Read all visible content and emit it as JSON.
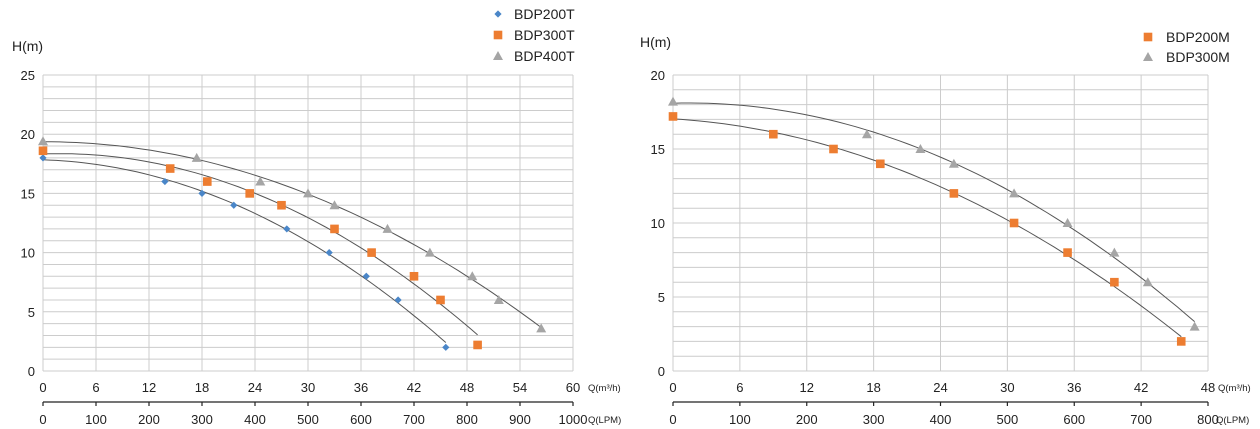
{
  "colors": {
    "grid": "#cccccc",
    "curve": "#555555",
    "BDP200T": "#4a86c8",
    "BDP300T": "#ed7d31",
    "BDP400T": "#a5a5a5",
    "BDP200M": "#ed7d31",
    "BDP300M": "#a5a5a5"
  },
  "chart_data": [
    {
      "type": "scatter",
      "ylabel": "H(m)",
      "xlabel": "Q(m³/h)",
      "xlabel2": "Q(LPM)",
      "xlim": [
        0,
        60
      ],
      "ylim": [
        0,
        25
      ],
      "x_ticks": [
        "0",
        "6",
        "12",
        "18",
        "24",
        "30",
        "36",
        "42",
        "48",
        "54",
        "60"
      ],
      "x2_ticks": [
        "0",
        "100",
        "200",
        "300",
        "400",
        "500",
        "600",
        "700",
        "800",
        "900",
        "1000"
      ],
      "y_ticks": [
        "0",
        "5",
        "10",
        "15",
        "20",
        "25"
      ],
      "grid": true,
      "legend": "top-center",
      "series": [
        {
          "name": "BDP200T",
          "marker": "diamond",
          "points": [
            [
              0,
              18
            ],
            [
              13.8,
              16
            ],
            [
              18,
              15
            ],
            [
              21.6,
              14
            ],
            [
              27.6,
              12
            ],
            [
              32.4,
              10
            ],
            [
              36.6,
              8
            ],
            [
              40.2,
              6
            ],
            [
              45.6,
              2
            ]
          ]
        },
        {
          "name": "BDP300T",
          "marker": "square",
          "points": [
            [
              0,
              18.6
            ],
            [
              14.4,
              17.1
            ],
            [
              18.6,
              16
            ],
            [
              23.4,
              15
            ],
            [
              27,
              14
            ],
            [
              33,
              12
            ],
            [
              37.2,
              10
            ],
            [
              42,
              8
            ],
            [
              45,
              6
            ],
            [
              49.2,
              2.2
            ]
          ]
        },
        {
          "name": "BDP400T",
          "marker": "triangle",
          "points": [
            [
              0,
              19.4
            ],
            [
              17.4,
              18
            ],
            [
              24.6,
              16
            ],
            [
              30,
              15
            ],
            [
              33,
              14
            ],
            [
              39,
              12
            ],
            [
              43.8,
              10
            ],
            [
              48.6,
              8
            ],
            [
              51.6,
              6
            ],
            [
              56.4,
              3.6
            ]
          ]
        }
      ]
    },
    {
      "type": "scatter",
      "ylabel": "H(m)",
      "xlabel": "Q(m³/h)",
      "xlabel2": "Q(LPM)",
      "xlim": [
        0,
        48
      ],
      "ylim": [
        0,
        20
      ],
      "x_ticks": [
        "0",
        "6",
        "12",
        "18",
        "24",
        "30",
        "36",
        "42",
        "48"
      ],
      "x2_ticks": [
        "0",
        "100",
        "200",
        "300",
        "400",
        "500",
        "600",
        "700",
        "800"
      ],
      "y_ticks": [
        "0",
        "5",
        "10",
        "15",
        "20"
      ],
      "grid": true,
      "legend": "top-right",
      "series": [
        {
          "name": "BDP200M",
          "marker": "square",
          "points": [
            [
              0,
              17.2
            ],
            [
              9,
              16
            ],
            [
              14.4,
              15
            ],
            [
              18.6,
              14
            ],
            [
              25.2,
              12
            ],
            [
              30.6,
              10
            ],
            [
              35.4,
              8
            ],
            [
              39.6,
              6
            ],
            [
              45.6,
              2
            ]
          ]
        },
        {
          "name": "BDP300M",
          "marker": "triangle",
          "points": [
            [
              0,
              18.2
            ],
            [
              17.4,
              16
            ],
            [
              22.2,
              15
            ],
            [
              25.2,
              14
            ],
            [
              30.6,
              12
            ],
            [
              35.4,
              10
            ],
            [
              39.6,
              8
            ],
            [
              42.6,
              6
            ],
            [
              46.8,
              3
            ]
          ]
        }
      ]
    }
  ]
}
